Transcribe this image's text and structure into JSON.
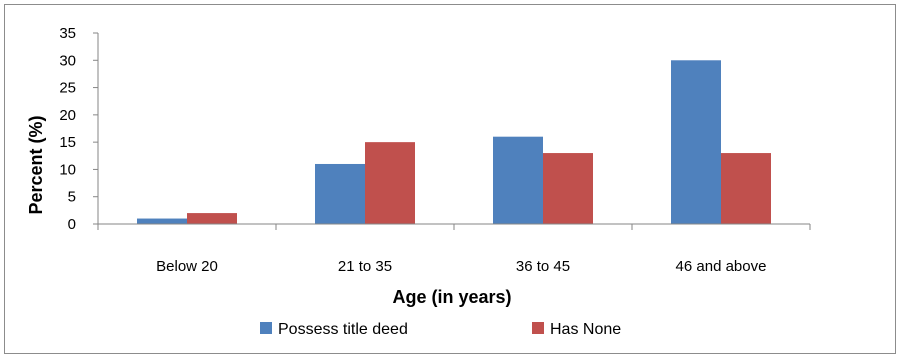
{
  "chart_data": {
    "type": "bar",
    "title": "",
    "xlabel": "Age (in years)",
    "ylabel": "Percent (%)",
    "categories": [
      "Below 20",
      "21 to 35",
      "36 to 45",
      "46 and above"
    ],
    "series": [
      {
        "name": "Possess title deed",
        "values": [
          1,
          11,
          16,
          30
        ],
        "color": "#4f81bd"
      },
      {
        "name": "Has None",
        "values": [
          2,
          15,
          13,
          13
        ],
        "color": "#c0504d"
      }
    ],
    "ylim": [
      0,
      35
    ],
    "yticks": [
      "0",
      "5",
      "10",
      "15",
      "20",
      "25",
      "30",
      "35"
    ],
    "grid": false,
    "legend_position": "bottom"
  }
}
